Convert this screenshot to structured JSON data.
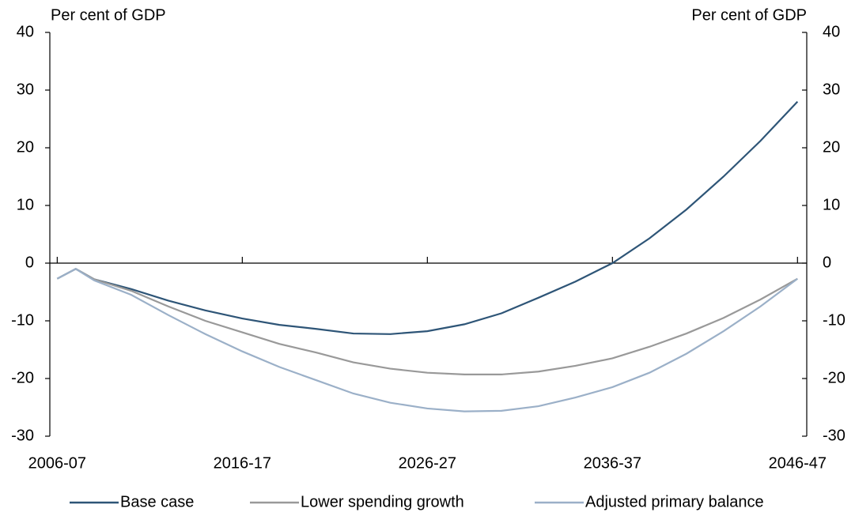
{
  "chart_data": {
    "type": "line",
    "y_label_left": "Per cent of GDP",
    "y_label_right": "Per cent of GDP",
    "x": [
      2006,
      2007,
      2008,
      2010,
      2012,
      2014,
      2016,
      2018,
      2020,
      2022,
      2024,
      2026,
      2028,
      2030,
      2032,
      2034,
      2036,
      2038,
      2040,
      2042,
      2044,
      2046
    ],
    "xlim": [
      2005.6,
      2046.5
    ],
    "xticks": [
      {
        "value": 2006,
        "label": "2006-07"
      },
      {
        "value": 2016,
        "label": "2016-17"
      },
      {
        "value": 2026,
        "label": "2026-27"
      },
      {
        "value": 2036,
        "label": "2036-37"
      },
      {
        "value": 2046,
        "label": "2046-47"
      }
    ],
    "ylim": [
      -30,
      40
    ],
    "yticks": [
      -30,
      -20,
      -10,
      0,
      10,
      20,
      30,
      40
    ],
    "y2lim": [
      -30,
      40
    ],
    "y2ticks": [
      -30,
      -20,
      -10,
      0,
      10,
      20,
      30,
      40
    ],
    "legend": "bottom",
    "series": [
      {
        "name": "Base case",
        "color": "#2e5577",
        "values": [
          -2.7,
          -1,
          -2.8,
          -4.5,
          -6.5,
          -8.2,
          -9.6,
          -10.7,
          -11.4,
          -12.2,
          -12.3,
          -11.8,
          -10.6,
          -8.7,
          -6.0,
          -3.2,
          0,
          4.3,
          9.3,
          15,
          21.2,
          28
        ]
      },
      {
        "name": "Lower spending growth",
        "color": "#999999",
        "values": [
          -2.7,
          -1,
          -2.8,
          -4.8,
          -7.5,
          -10,
          -12,
          -14,
          -15.5,
          -17.2,
          -18.3,
          -19,
          -19.3,
          -19.3,
          -18.8,
          -17.8,
          -16.5,
          -14.5,
          -12.2,
          -9.5,
          -6.3,
          -2.7
        ]
      },
      {
        "name": "Adjusted primary balance",
        "color": "#9bb0c8",
        "values": [
          -2.7,
          -1,
          -3,
          -5.5,
          -9,
          -12.3,
          -15.3,
          -18,
          -20.3,
          -22.6,
          -24.2,
          -25.2,
          -25.7,
          -25.6,
          -24.8,
          -23.3,
          -21.5,
          -19,
          -15.7,
          -11.8,
          -7.5,
          -2.7
        ]
      }
    ]
  }
}
